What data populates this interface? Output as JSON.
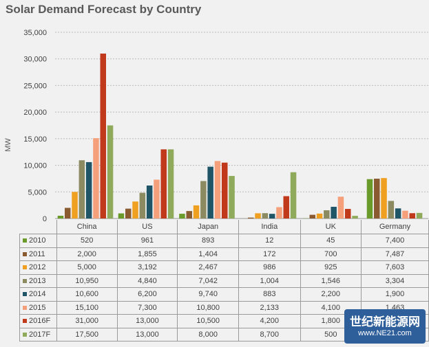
{
  "chart_data": {
    "type": "bar",
    "title": "Solar Demand Forecast by Country",
    "xlabel": "",
    "ylabel": "MW",
    "ylim": [
      0,
      35000
    ],
    "yticks": [
      "0",
      "5,000",
      "10,000",
      "15,000",
      "20,000",
      "25,000",
      "30,000",
      "35,000"
    ],
    "grid": true,
    "legend": "table-below",
    "categories": [
      "China",
      "US",
      "Japan",
      "India",
      "UK",
      "Germany"
    ],
    "series": [
      {
        "name": "2010",
        "color": "#6a9a2a",
        "values": [
          520,
          961,
          893,
          12,
          45,
          7400
        ],
        "labels": [
          "520",
          "961",
          "893",
          "12",
          "45",
          "7,400"
        ]
      },
      {
        "name": "2011",
        "color": "#8a5a30",
        "values": [
          2000,
          1855,
          1404,
          172,
          700,
          7487
        ],
        "labels": [
          "2,000",
          "1,855",
          "1,404",
          "172",
          "700",
          "7,487"
        ]
      },
      {
        "name": "2012",
        "color": "#f0a020",
        "values": [
          5000,
          3192,
          2467,
          986,
          925,
          7603
        ],
        "labels": [
          "5,000",
          "3,192",
          "2,467",
          "986",
          "925",
          "7,603"
        ]
      },
      {
        "name": "2013",
        "color": "#8c8a60",
        "values": [
          10950,
          4840,
          7042,
          1004,
          1546,
          3304
        ],
        "labels": [
          "10,950",
          "4,840",
          "7,042",
          "1,004",
          "1,546",
          "3,304"
        ]
      },
      {
        "name": "2014",
        "color": "#1f5566",
        "values": [
          10600,
          6200,
          9740,
          883,
          2200,
          1900
        ],
        "labels": [
          "10,600",
          "6,200",
          "9,740",
          "883",
          "2,200",
          "1,900"
        ]
      },
      {
        "name": "2015",
        "color": "#f5a07a",
        "values": [
          15100,
          7300,
          10800,
          2133,
          4100,
          1463
        ],
        "labels": [
          "15,100",
          "7,300",
          "10,800",
          "2,133",
          "4,100",
          "1,463"
        ]
      },
      {
        "name": "2016F",
        "color": "#c0391b",
        "values": [
          31000,
          13000,
          10500,
          4200,
          1800,
          1000
        ],
        "labels": [
          "31,000",
          "13,000",
          "10,500",
          "4,200",
          "1,800",
          ""
        ]
      },
      {
        "name": "2017F",
        "color": "#8faa5a",
        "values": [
          17500,
          13000,
          8000,
          8700,
          500,
          1050
        ],
        "labels": [
          "17,500",
          "13,000",
          "8,000",
          "8,700",
          "500",
          ""
        ]
      }
    ]
  },
  "watermark": {
    "line1": "世纪新能源网",
    "line2": "www.NE21.com"
  }
}
